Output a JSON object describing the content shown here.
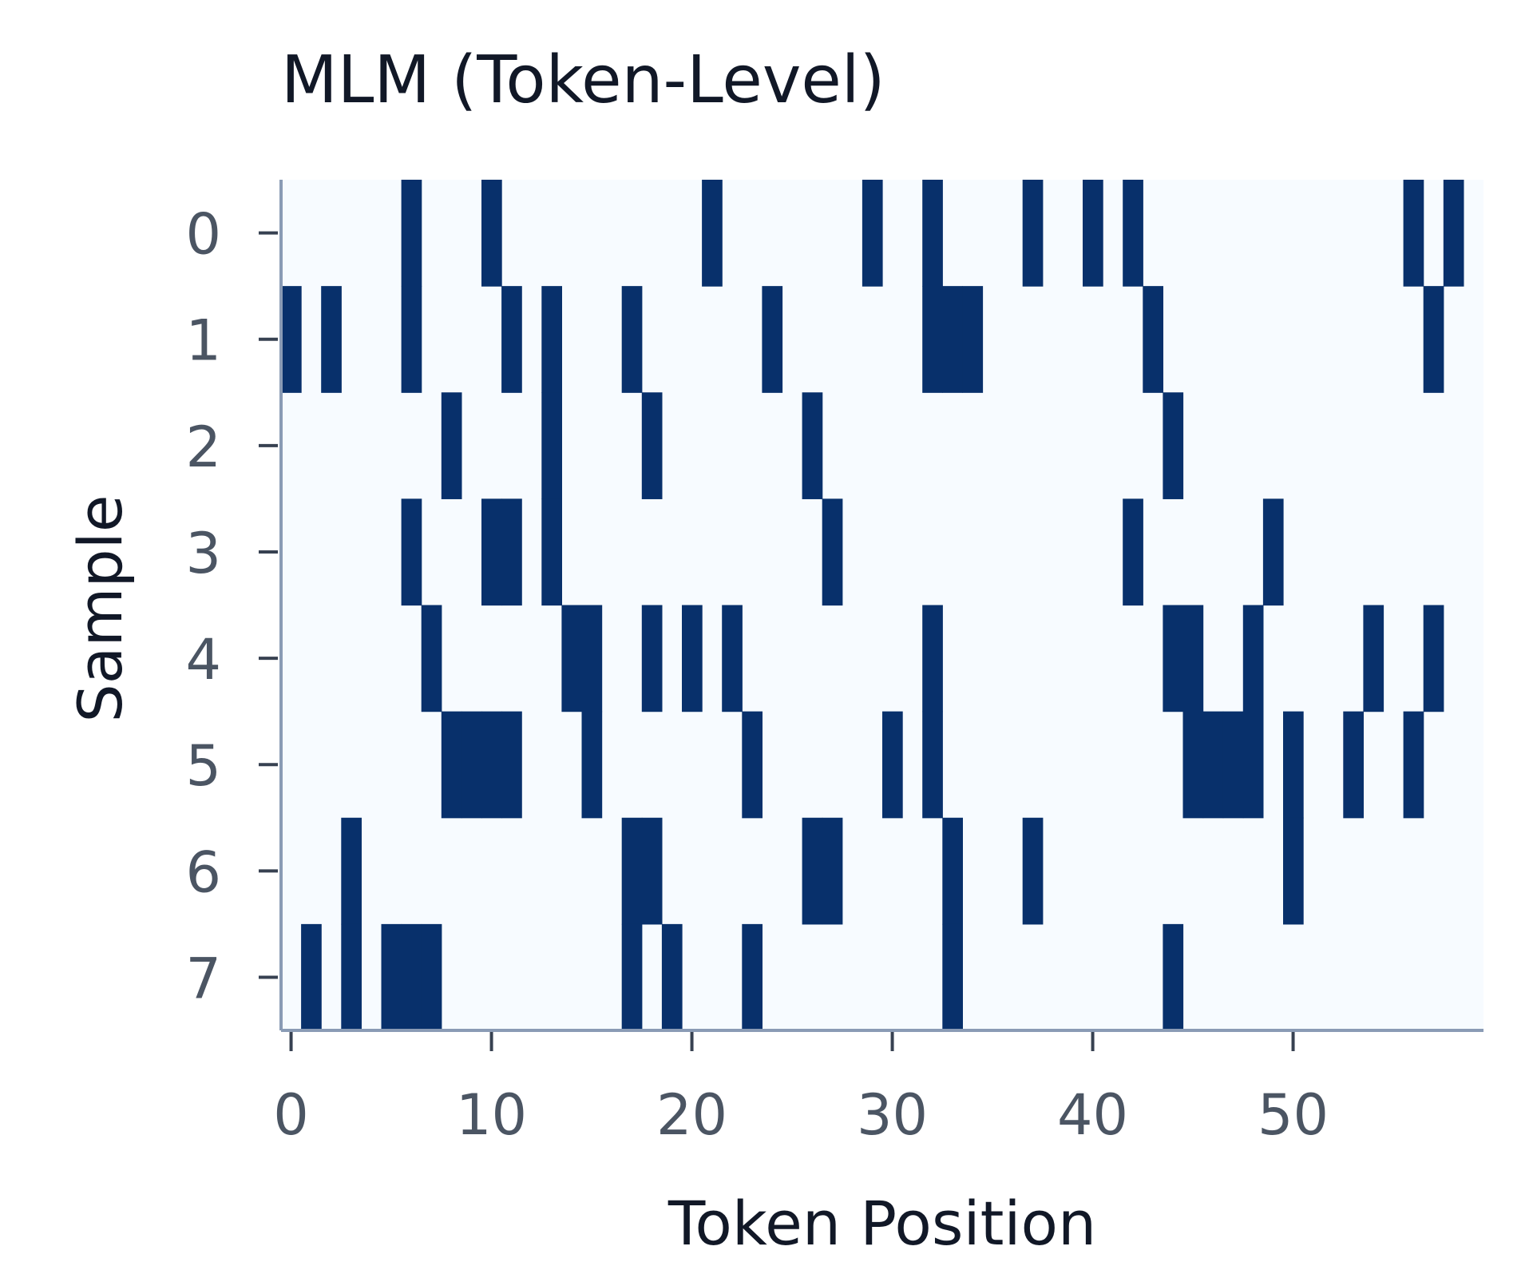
{
  "chart_data": {
    "type": "heatmap",
    "title": "MLM (Token-Level)",
    "xlabel": "Token Position",
    "ylabel": "Sample",
    "x_ticks": [
      0,
      10,
      20,
      30,
      40,
      50
    ],
    "y_ticks": [
      0,
      1,
      2,
      3,
      4,
      5,
      6,
      7
    ],
    "xlim": [
      -0.5,
      59.5
    ],
    "ylim": [
      -0.5,
      7.5
    ],
    "n_positions": 60,
    "n_samples": 8,
    "masked_positions": [
      [
        6,
        10,
        21,
        29,
        32,
        37,
        40,
        42,
        56,
        58
      ],
      [
        0,
        2,
        6,
        11,
        13,
        17,
        24,
        32,
        33,
        34,
        43,
        57
      ],
      [
        8,
        13,
        18,
        26,
        44
      ],
      [
        6,
        10,
        11,
        13,
        27,
        42,
        49
      ],
      [
        7,
        14,
        15,
        18,
        20,
        22,
        32,
        44,
        45,
        48,
        54,
        57
      ],
      [
        8,
        9,
        10,
        11,
        15,
        23,
        30,
        32,
        45,
        46,
        47,
        48,
        50,
        53,
        56
      ],
      [
        3,
        17,
        18,
        26,
        27,
        33,
        37,
        50
      ],
      [
        1,
        3,
        5,
        6,
        7,
        17,
        19,
        23,
        33,
        44
      ]
    ],
    "colors": {
      "masked": "#08306b",
      "unmasked": "#f7fbff",
      "axis": "#8a9bb5"
    },
    "grid": false,
    "legend": "none"
  }
}
